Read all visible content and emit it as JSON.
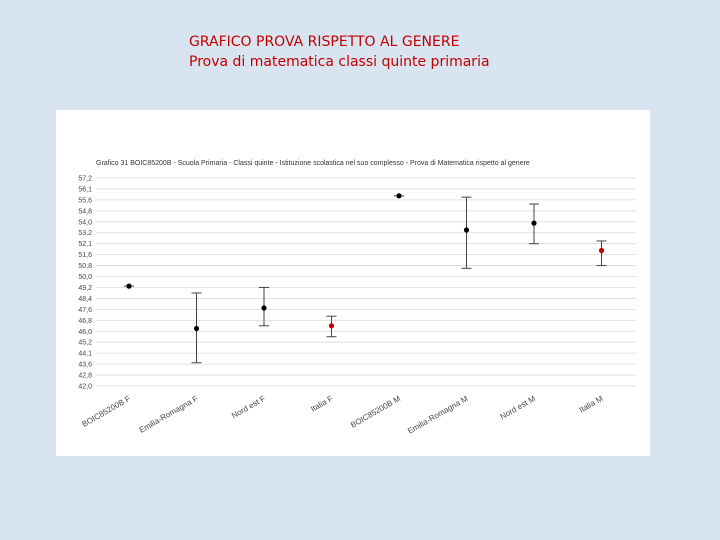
{
  "slide": {
    "title_line1": "GRAFICO PROVA RISPETTO AL GENERE",
    "title_line2": "Prova di matematica classi quinte primaria"
  },
  "chart_data": {
    "type": "scatter",
    "title": "Grafico 31 BOIC85200B - Scuola Primaria - Classi quinte - Istituzione scolastica nel suo complesso - Prova di Matematica rispetto al genere",
    "xlabel": "",
    "ylabel": "",
    "ylim": [
      42.0,
      57.2
    ],
    "y_ticks": [
      "57,2",
      "56,1",
      "55,6",
      "54,8",
      "54,0",
      "53,2",
      "52,1",
      "51,6",
      "50,8",
      "50,0",
      "49,2",
      "48,4",
      "47,6",
      "46,8",
      "46,0",
      "45,2",
      "44,1",
      "43,6",
      "42,8",
      "42,0"
    ],
    "grid": true,
    "error_bars": true,
    "categories": [
      "BOIC85200B F",
      "Emilia-Romagna F",
      "Nord est F",
      "Italia F",
      "BOIC85200B M",
      "Emilia-Romagna M",
      "Nord est M",
      "Italia M"
    ],
    "values": [
      49.3,
      46.2,
      47.7,
      46.4,
      55.9,
      53.4,
      53.9,
      51.9
    ],
    "lower": [
      49.3,
      43.7,
      46.4,
      45.6,
      55.9,
      50.6,
      52.4,
      50.8
    ],
    "upper": [
      49.3,
      48.8,
      49.2,
      47.1,
      55.9,
      55.8,
      55.3,
      52.6
    ],
    "point_colors": [
      "#000000",
      "#000000",
      "#000000",
      "#c00000",
      "#000000",
      "#000000",
      "#000000",
      "#c00000"
    ]
  }
}
